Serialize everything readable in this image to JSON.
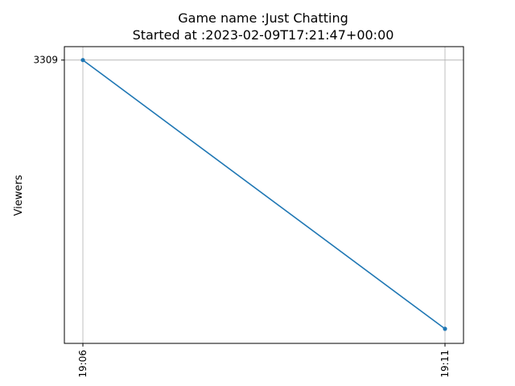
{
  "chart_data": {
    "type": "line",
    "title": "Game name :Just Chatting",
    "subtitle": "Started at :2023-02-09T17:21:47+00:00",
    "xlabel": "",
    "ylabel": "Viewers",
    "categories": [
      "19:06",
      "19:11"
    ],
    "series": [
      {
        "values": [
          3309,
          3261
        ]
      }
    ],
    "x_ticks": [
      "19:06",
      "19:11"
    ],
    "y_ticks": [
      3309
    ],
    "y_tick_labels": [
      "3309"
    ],
    "ylim": [
      3258.4,
      3311.4
    ],
    "grid": true,
    "legend": "none",
    "line_color": "#1f77b4"
  }
}
